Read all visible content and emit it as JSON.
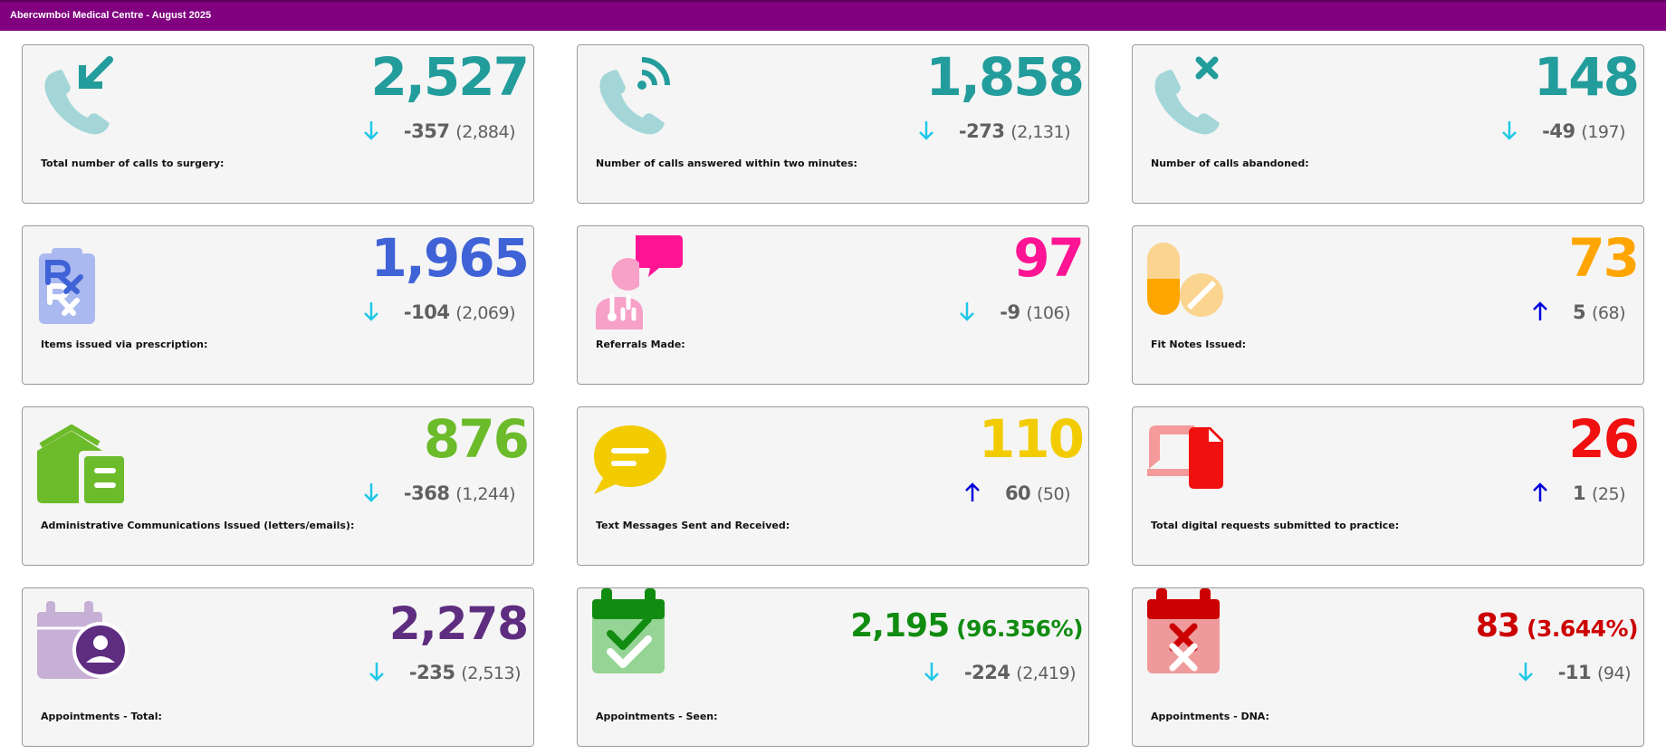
{
  "header": {
    "title": "Abercwmboi Medical Centre - August 2025"
  },
  "colors": {
    "header_bg": "#800080",
    "teal": "#239c9c",
    "blue": "#3f63d6",
    "pink": "#ff1493",
    "orange": "#ffa500",
    "green_light": "#6cbb2a",
    "yellow": "#f2cc00",
    "red": "#f01010",
    "purple": "#5e2d80",
    "green": "#118c11",
    "dark_red": "#cc0000",
    "arrow_down": "#1fc8e8",
    "arrow_up": "#0000dd"
  },
  "cards": [
    {
      "label": "Total number of calls to surgery:",
      "value": "2,527",
      "change": "-357",
      "previous": "(2,884)",
      "direction": "down",
      "icon": "incoming-call-icon"
    },
    {
      "label": "Number of calls answered within two minutes:",
      "value": "1,858",
      "change": "-273",
      "previous": "(2,131)",
      "direction": "down",
      "icon": "answered-call-icon"
    },
    {
      "label": "Number of calls abandoned:",
      "value": "148",
      "change": "-49",
      "previous": "(197)",
      "direction": "down",
      "icon": "abandoned-call-icon"
    },
    {
      "label": "Items issued via prescription:",
      "value": "1,965",
      "change": "-104",
      "previous": "(2,069)",
      "direction": "down",
      "icon": "prescription-icon"
    },
    {
      "label": "Referrals Made:",
      "value": "97",
      "change": "-9",
      "previous": "(106)",
      "direction": "down",
      "icon": "doctor-chat-icon"
    },
    {
      "label": "Fit Notes Issued:",
      "value": "73",
      "change": "5",
      "previous": "(68)",
      "direction": "up",
      "icon": "pills-icon"
    },
    {
      "label": "Administrative Communications Issued (letters/emails):",
      "value": "876",
      "change": "-368",
      "previous": "(1,244)",
      "direction": "down",
      "icon": "house-document-icon"
    },
    {
      "label": "Text Messages Sent and Received:",
      "value": "110",
      "change": "60",
      "previous": "(50)",
      "direction": "up",
      "icon": "message-bubble-icon"
    },
    {
      "label": "Total digital requests submitted to practice:",
      "value": "26",
      "change": "1",
      "previous": "(25)",
      "direction": "up",
      "icon": "digital-request-icon"
    },
    {
      "label": "Appointments - Total:",
      "value": "2,278",
      "percent": "",
      "change": "-235",
      "previous": "(2,513)",
      "direction": "down",
      "icon": "calendar-user-icon"
    },
    {
      "label": "Appointments - Seen:",
      "value": "2,195",
      "percent": "(96.356%)",
      "change": "-224",
      "previous": "(2,419)",
      "direction": "down",
      "icon": "calendar-check-icon"
    },
    {
      "label": "Appointments - DNA:",
      "value": "83",
      "percent": "(3.644%)",
      "change": "-11",
      "previous": "(94)",
      "direction": "down",
      "icon": "calendar-cross-icon"
    }
  ]
}
